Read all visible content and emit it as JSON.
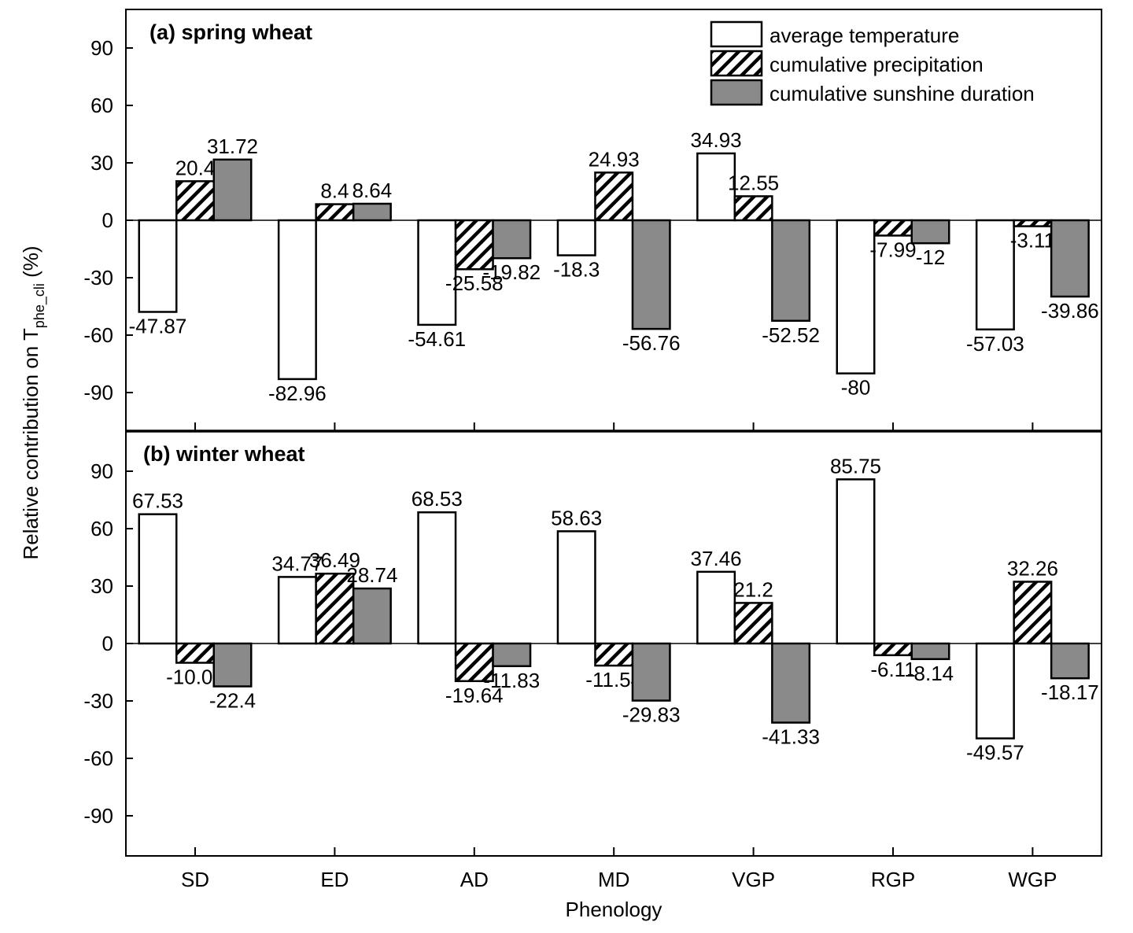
{
  "chart_data": {
    "type": "bar",
    "ylabel_main": "Relative contribution on T",
    "ylabel_sub": "phe_cli",
    "ylabel_tail": " (%)",
    "xlabel": "Phenology",
    "categories": [
      "SD",
      "ED",
      "AD",
      "MD",
      "VGP",
      "RGP",
      "WGP"
    ],
    "yticks": [
      90,
      60,
      30,
      0,
      -30,
      -60,
      -90
    ],
    "ylim": [
      -110,
      110
    ],
    "grid": false,
    "legend_position": "top-right",
    "legend": [
      {
        "name": "average temperature",
        "style": "white"
      },
      {
        "name": "cumulative precipitation",
        "style": "hatched"
      },
      {
        "name": "cumulative sunshine duration",
        "style": "gray"
      }
    ],
    "colors": {
      "gray": "#8a8a8a",
      "outline": "#000000",
      "white": "#ffffff"
    },
    "panels": [
      {
        "title": "(a) spring wheat",
        "series": [
          {
            "name": "average temperature",
            "values": [
              -47.87,
              -82.96,
              -54.61,
              -18.3,
              34.93,
              -80,
              -57.03
            ]
          },
          {
            "name": "cumulative precipitation",
            "values": [
              20.4,
              8.4,
              -25.58,
              24.93,
              12.55,
              -7.99,
              -3.11
            ]
          },
          {
            "name": "cumulative sunshine duration",
            "values": [
              31.72,
              8.64,
              -19.82,
              -56.76,
              -52.52,
              -12,
              -39.86
            ]
          }
        ]
      },
      {
        "title": "(b) winter wheat",
        "series": [
          {
            "name": "average temperature",
            "values": [
              67.53,
              34.77,
              68.53,
              58.63,
              37.46,
              85.75,
              -49.57
            ]
          },
          {
            "name": "cumulative precipitation",
            "values": [
              -10.07,
              36.49,
              -19.64,
              -11.54,
              21.2,
              -6.11,
              32.26
            ]
          },
          {
            "name": "cumulative sunshine duration",
            "values": [
              -22.4,
              28.74,
              -11.83,
              -29.83,
              -41.33,
              -8.14,
              -18.17
            ]
          }
        ]
      }
    ]
  }
}
